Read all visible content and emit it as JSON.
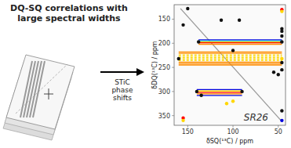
{
  "chart_data": {
    "type": "scatter",
    "title": "DQ-SQ correlations with\nlarge spectral widths",
    "x_label": "δSQ(¹³C) / ppm",
    "y_label": "δDQ(¹³C) / ppm",
    "annotations": [
      "STiC\nphase\nshifts",
      "SR26"
    ],
    "xlim": [
      165,
      42
    ],
    "ylim": [
      370,
      120
    ],
    "xticks": [
      150,
      100,
      50
    ],
    "yticks": [
      150,
      200,
      250,
      300,
      350
    ],
    "grid": false,
    "series": [
      {
        "type": "line",
        "color": "#999999",
        "line_style": "solid",
        "x": [
          158,
          46
        ],
        "values": [
          128,
          362
        ]
      },
      {
        "type": "line",
        "color": "#0000DD",
        "line_style": "solid",
        "x": [
          138,
          46
        ],
        "values": [
          193,
          193
        ]
      },
      {
        "type": "line",
        "color": "#00AAFF",
        "line_style": "solid",
        "x": [
          138,
          46
        ],
        "values": [
          195,
          195
        ]
      },
      {
        "type": "line",
        "color": "#FFD700",
        "line_style": "solid",
        "x": [
          138,
          46
        ],
        "values": [
          197,
          197
        ]
      },
      {
        "type": "line",
        "color": "#FF0000",
        "line_style": "solid",
        "x": [
          138,
          46
        ],
        "values": [
          199,
          199
        ]
      },
      {
        "type": "line",
        "color": "#FF8C00",
        "line_style": "solid",
        "x": [
          138,
          46
        ],
        "values": [
          202,
          202
        ]
      },
      {
        "type": "line",
        "color": "#FF8C00",
        "line_style": "solid",
        "x": [
          160,
          46
        ],
        "values": [
          218,
          218
        ]
      },
      {
        "type": "line",
        "color": "#FF8C00",
        "line_style": "solid",
        "x": [
          160,
          46
        ],
        "values": [
          221,
          221
        ]
      },
      {
        "type": "line",
        "color": "#FFD700",
        "line_style": "dashed",
        "x": [
          160,
          46
        ],
        "values": [
          224,
          224
        ]
      },
      {
        "type": "line",
        "color": "#FFD700",
        "line_style": "dashed",
        "x": [
          160,
          46
        ],
        "values": [
          227,
          227
        ]
      },
      {
        "type": "line",
        "color": "#FFD700",
        "line_style": "dashed",
        "x": [
          160,
          46
        ],
        "values": [
          230,
          230
        ]
      },
      {
        "type": "line",
        "color": "#FFD700",
        "line_style": "dashed",
        "x": [
          160,
          46
        ],
        "values": [
          233,
          233
        ]
      },
      {
        "type": "line",
        "color": "#FFD700",
        "line_style": "dashed",
        "x": [
          160,
          46
        ],
        "values": [
          236,
          236
        ]
      },
      {
        "type": "line",
        "color": "#FF8C00",
        "line_style": "solid",
        "x": [
          160,
          46
        ],
        "values": [
          239,
          239
        ]
      },
      {
        "type": "line",
        "color": "#FF8C00",
        "line_style": "solid",
        "x": [
          160,
          46
        ],
        "values": [
          242,
          242
        ]
      },
      {
        "type": "line",
        "color": "#FF8C00",
        "line_style": "solid",
        "x": [
          160,
          46
        ],
        "values": [
          245,
          245
        ]
      },
      {
        "type": "line",
        "color": "#0000DD",
        "line_style": "solid",
        "x": [
          140,
          90
        ],
        "values": [
          296,
          296
        ]
      },
      {
        "type": "line",
        "color": "#FFD700",
        "line_style": "solid",
        "x": [
          140,
          90
        ],
        "values": [
          299,
          299
        ]
      },
      {
        "type": "line",
        "color": "#FF0000",
        "line_style": "solid",
        "x": [
          140,
          90
        ],
        "values": [
          302,
          302
        ]
      },
      {
        "type": "line",
        "color": "#FF8C00",
        "line_style": "solid",
        "x": [
          140,
          90
        ],
        "values": [
          305,
          305
        ]
      },
      {
        "type": "line",
        "color": "#0000DD",
        "line_style": "solid",
        "x": [
          140,
          90
        ],
        "values": [
          308,
          308
        ]
      },
      {
        "type": "scatter",
        "marker": "circle",
        "x": [
          150,
          113,
          93,
          155,
          46,
          46,
          46,
          46,
          46,
          138,
          46,
          160,
          46,
          46,
          100,
          55,
          50,
          46,
          100,
          107,
          140,
          90,
          135,
          46,
          155,
          155,
          46
        ],
        "values": [
          128,
          152,
          152,
          162,
          130,
          134,
          170,
          175,
          185,
          197,
          197,
          232,
          232,
          240,
          215,
          260,
          265,
          255,
          320,
          325,
          300,
          300,
          308,
          340,
          355,
          360,
          360
        ],
        "colors": [
          "#111111",
          "#111111",
          "#111111",
          "#111111",
          "#FF0000",
          "#FFD700",
          "#111111",
          "#111111",
          "#111111",
          "#111111",
          "#111111",
          "#111111",
          "#FFD700",
          "#111111",
          "#111111",
          "#111111",
          "#111111",
          "#111111",
          "#FFD700",
          "#FFD700",
          "#111111",
          "#111111",
          "#111111",
          "#111111",
          "#FF0000",
          "#FFD700",
          "#0000DD"
        ]
      }
    ]
  }
}
